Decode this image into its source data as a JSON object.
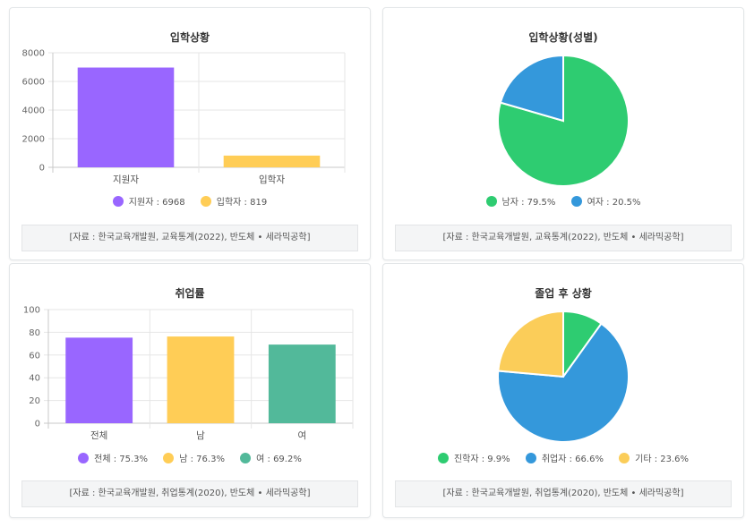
{
  "cards": [
    {
      "title": "입학상황",
      "source": "[자료 : 한국교육개발원, 교육통계(2022), 반도체 • 세라믹공학]",
      "legend": [
        {
          "label": "지원자 : 6968",
          "color": "#9966ff"
        },
        {
          "label": "입학자 : 819",
          "color": "#ffcd56"
        }
      ]
    },
    {
      "title": "입학상황(성별)",
      "source": "[자료 : 한국교육개발원, 교육통계(2022), 반도체 • 세라믹공학]",
      "legend": [
        {
          "label": "남자 : 79.5%",
          "color": "#2ecc71"
        },
        {
          "label": "여자 : 20.5%",
          "color": "#3498db"
        }
      ]
    },
    {
      "title": "취업률",
      "source": "[자료 : 한국교육개발원, 취업통계(2020), 반도체 • 세라믹공학]",
      "legend": [
        {
          "label": "전체 : 75.3%",
          "color": "#9966ff"
        },
        {
          "label": "남 : 76.3%",
          "color": "#ffcd56"
        },
        {
          "label": "여 : 69.2%",
          "color": "#52b99a"
        }
      ]
    },
    {
      "title": "졸업 후 상황",
      "source": "[자료 : 한국교육개발원, 취업통계(2020), 반도체 • 세라믹공학]",
      "legend": [
        {
          "label": "진학자 : 9.9%",
          "color": "#2ecc71"
        },
        {
          "label": "취업자 : 66.6%",
          "color": "#3498db"
        },
        {
          "label": "기타 : 23.6%",
          "color": "#fbcd59"
        }
      ]
    }
  ],
  "chart_data": [
    {
      "type": "bar",
      "title": "입학상황",
      "categories": [
        "지원자",
        "입학자"
      ],
      "values": [
        6968,
        819
      ],
      "colors": [
        "#9966ff",
        "#ffcd56"
      ],
      "yticks": [
        "8000",
        "6000",
        "4000",
        "2000",
        "0"
      ],
      "ylim": [
        0,
        8000
      ],
      "grid": true
    },
    {
      "type": "pie",
      "title": "입학상황(성별)",
      "categories": [
        "남자",
        "여자"
      ],
      "values": [
        79.5,
        20.5
      ],
      "colors": [
        "#2ecc71",
        "#3498db"
      ]
    },
    {
      "type": "bar",
      "title": "취업률",
      "categories": [
        "전체",
        "남",
        "여"
      ],
      "values": [
        75.3,
        76.3,
        69.2
      ],
      "colors": [
        "#9966ff",
        "#ffcd56",
        "#52b99a"
      ],
      "yticks": [
        "100",
        "80",
        "60",
        "40",
        "20",
        "0"
      ],
      "ylim": [
        0,
        100
      ],
      "grid": true
    },
    {
      "type": "pie",
      "title": "졸업 후 상황",
      "categories": [
        "진학자",
        "취업자",
        "기타"
      ],
      "values": [
        9.9,
        66.6,
        23.6
      ],
      "colors": [
        "#2ecc71",
        "#3498db",
        "#fbcd59"
      ]
    }
  ]
}
